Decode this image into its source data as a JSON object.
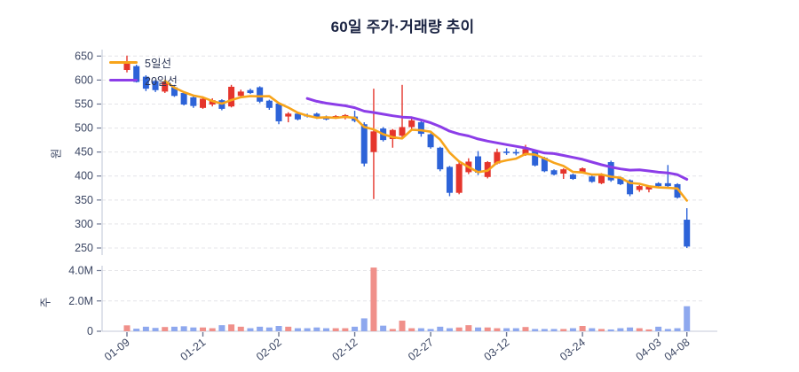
{
  "title": "60일 주가·거래량 추이",
  "legend": {
    "ma5_label": "5일선",
    "ma20_label": "20일선"
  },
  "price_axis": {
    "unit_label": "원",
    "ticks": [
      650,
      600,
      550,
      500,
      450,
      400,
      350,
      300,
      250
    ]
  },
  "volume_axis": {
    "unit_label": "주",
    "ticks": [
      {
        "label": "4.0M",
        "value": 4.0
      },
      {
        "label": "2.0M",
        "value": 2.0
      },
      {
        "label": "0",
        "value": 0
      }
    ]
  },
  "colors": {
    "up": "#e5352c",
    "down": "#2d63d8",
    "volume_up": "#f0908a",
    "volume_down": "#8ea8ee",
    "ma5": "#f7a41b",
    "ma20": "#8c3de8",
    "grid": "#e4e4e8",
    "axis": "#c9cfdd",
    "tick": "#6b7590",
    "text": "#3b4663",
    "title": "#1a2342",
    "background": "#ffffff"
  },
  "chart_data": {
    "type": "candlestick+volume",
    "title": "60일 주가·거래량 추이",
    "price_ylabel": "원",
    "volume_ylabel": "주",
    "price_range": [
      250,
      650
    ],
    "volume_range_millions": [
      0,
      4.0
    ],
    "grid": "dashed-horizontal",
    "legend_position": "top-left",
    "ma5_window": 5,
    "ma20_window": 20,
    "x_tick_labels": [
      "01-09",
      "01-21",
      "02-02",
      "02-12",
      "02-27",
      "03-12",
      "03-24",
      "04-03",
      "04-08"
    ],
    "x_tick_indices": [
      0,
      8,
      16,
      24,
      32,
      40,
      48,
      56,
      59
    ],
    "ohlc": [
      [
        621,
        651,
        616,
        637
      ],
      [
        629,
        632,
        595,
        596
      ],
      [
        607,
        610,
        577,
        582
      ],
      [
        598,
        600,
        575,
        579
      ],
      [
        576,
        600,
        573,
        597
      ],
      [
        585,
        590,
        565,
        567
      ],
      [
        573,
        575,
        547,
        549
      ],
      [
        564,
        566,
        542,
        546
      ],
      [
        542,
        566,
        540,
        561
      ],
      [
        549,
        562,
        545,
        558
      ],
      [
        558,
        560,
        537,
        540
      ],
      [
        545,
        590,
        543,
        586
      ],
      [
        567,
        580,
        563,
        576
      ],
      [
        579,
        582,
        571,
        573
      ],
      [
        585,
        587,
        552,
        555
      ],
      [
        557,
        559,
        538,
        542
      ],
      [
        551,
        553,
        508,
        514
      ],
      [
        524,
        533,
        512,
        530
      ],
      [
        530,
        532,
        516,
        518
      ],
      [
        527,
        530,
        522,
        525
      ],
      [
        530,
        532,
        519,
        521
      ],
      [
        524,
        526,
        516,
        518
      ],
      [
        522,
        527,
        519,
        525
      ],
      [
        521,
        529,
        518,
        527
      ],
      [
        524,
        536,
        512,
        515
      ],
      [
        508,
        512,
        420,
        426
      ],
      [
        450,
        582,
        352,
        493
      ],
      [
        499,
        502,
        472,
        475
      ],
      [
        477,
        498,
        459,
        496
      ],
      [
        484,
        590,
        480,
        502
      ],
      [
        502,
        520,
        498,
        516
      ],
      [
        512,
        514,
        482,
        488
      ],
      [
        487,
        489,
        457,
        460
      ],
      [
        459,
        461,
        410,
        414
      ],
      [
        419,
        421,
        358,
        365
      ],
      [
        365,
        430,
        362,
        425
      ],
      [
        408,
        437,
        404,
        430
      ],
      [
        441,
        452,
        402,
        407
      ],
      [
        398,
        431,
        395,
        429
      ],
      [
        426,
        457,
        424,
        450
      ],
      [
        451,
        458,
        444,
        448
      ],
      [
        450,
        456,
        443,
        447
      ],
      [
        444,
        465,
        442,
        456
      ],
      [
        452,
        454,
        420,
        422
      ],
      [
        438,
        440,
        408,
        410
      ],
      [
        412,
        414,
        401,
        403
      ],
      [
        405,
        416,
        394,
        414
      ],
      [
        403,
        405,
        392,
        394
      ],
      [
        408,
        418,
        406,
        416
      ],
      [
        399,
        401,
        386,
        388
      ],
      [
        385,
        406,
        383,
        404
      ],
      [
        429,
        432,
        388,
        391
      ],
      [
        397,
        399,
        381,
        383
      ],
      [
        391,
        393,
        358,
        362
      ],
      [
        371,
        381,
        367,
        379
      ],
      [
        372,
        380,
        366,
        378
      ],
      [
        385,
        387,
        377,
        379
      ],
      [
        385,
        423,
        377,
        379
      ],
      [
        383,
        385,
        353,
        355
      ],
      [
        309,
        333,
        250,
        253
      ]
    ],
    "volume_millions": [
      0.39,
      0.17,
      0.3,
      0.22,
      0.28,
      0.3,
      0.33,
      0.25,
      0.25,
      0.2,
      0.4,
      0.45,
      0.3,
      0.2,
      0.3,
      0.25,
      0.35,
      0.3,
      0.2,
      0.2,
      0.25,
      0.2,
      0.2,
      0.2,
      0.3,
      0.85,
      4.2,
      0.37,
      0.15,
      0.7,
      0.2,
      0.2,
      0.15,
      0.3,
      0.2,
      0.25,
      0.4,
      0.25,
      0.25,
      0.2,
      0.2,
      0.2,
      0.28,
      0.15,
      0.15,
      0.15,
      0.15,
      0.2,
      0.35,
      0.2,
      0.15,
      0.12,
      0.2,
      0.25,
      0.2,
      0.12,
      0.3,
      0.15,
      0.2,
      1.65
    ]
  }
}
